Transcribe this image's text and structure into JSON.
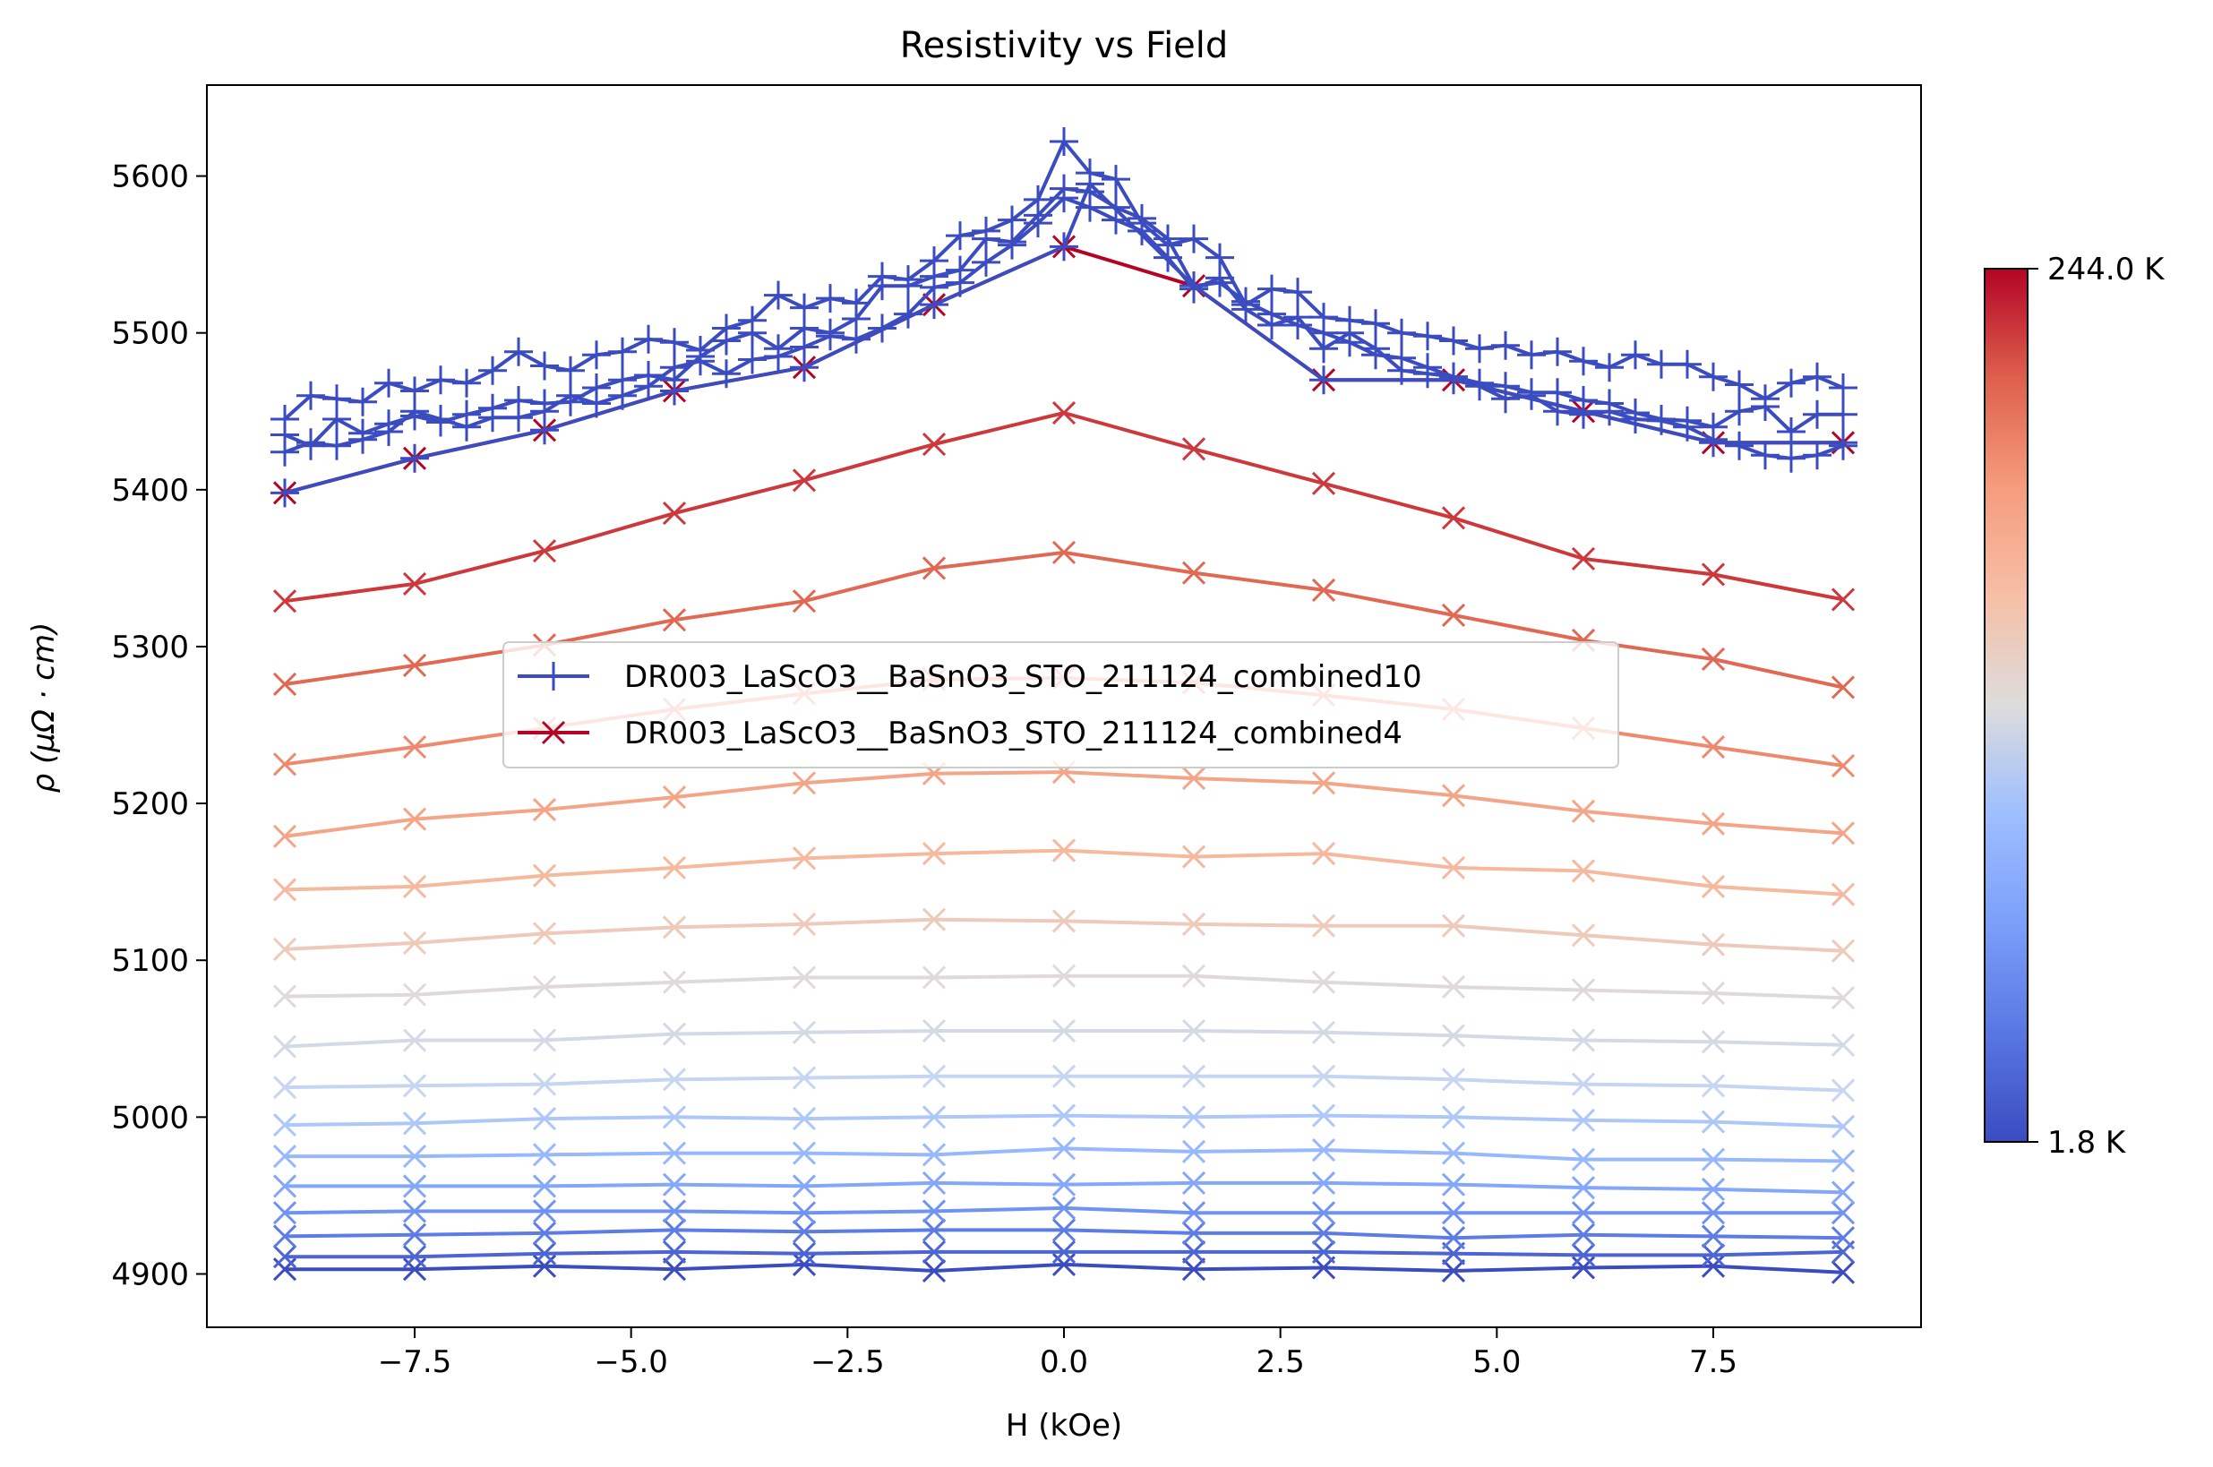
{
  "chart_data": {
    "type": "line",
    "title": "Resistivity vs Field",
    "xlabel": "H (kOe)",
    "ylabel": "ρ (μΩ · cm)",
    "xlim": [
      -9.9,
      9.9
    ],
    "ylim": [
      4866,
      5658
    ],
    "xticks": [
      "−7.5",
      "−5.0",
      "−2.5",
      "0.0",
      "2.5",
      "5.0",
      "7.5"
    ],
    "xtick_values": [
      -7.5,
      -5.0,
      -2.5,
      0.0,
      2.5,
      5.0,
      7.5
    ],
    "yticks": [
      "4900",
      "5000",
      "5100",
      "5200",
      "5300",
      "5400",
      "5500",
      "5600"
    ],
    "ytick_values": [
      4900,
      5000,
      5100,
      5200,
      5300,
      5400,
      5500,
      5600
    ],
    "grid": false,
    "legend_position": "center",
    "legend": [
      {
        "name": "DR003_LaScO3__BaSnO3_STO_211124_combined10",
        "marker": "+",
        "color": "#3b4cc0"
      },
      {
        "name": "DR003_LaScO3__BaSnO3_STO_211124_combined4",
        "marker": "x",
        "color": "#b40426"
      }
    ],
    "colorbar": {
      "colormap": "coolwarm",
      "min_label": "1.8 K",
      "max_label": "244.0 K",
      "min": 1.8,
      "max": 244.0
    },
    "dense_series": [
      {
        "marker": "+",
        "color": "#3b4cc0",
        "x": [
          -9,
          -8.7,
          -8.4,
          -8.1,
          -7.8,
          -7.5,
          -7.2,
          -6.9,
          -6.6,
          -6.3,
          -6,
          -5.7,
          -5.4,
          -5.1,
          -4.8,
          -4.5,
          -4.2,
          -3.9,
          -3.6,
          -3.3,
          -3,
          -2.7,
          -2.4,
          -2.1,
          -1.8,
          -1.5,
          -1.2,
          -0.9,
          -0.6,
          -0.3,
          0,
          0.3,
          0.6,
          0.9,
          1.2,
          1.5,
          1.8,
          2.1,
          2.4,
          2.7,
          3,
          3.3,
          3.6,
          3.9,
          4.2,
          4.5,
          4.8,
          5.1,
          5.4,
          5.7,
          6,
          6.3,
          6.6,
          6.9,
          7.2,
          7.5,
          7.8,
          8.1,
          8.4,
          8.7,
          9
        ],
        "y": [
          5445,
          5460,
          5458,
          5456,
          5468,
          5463,
          5470,
          5468,
          5476,
          5488,
          5479,
          5476,
          5486,
          5488,
          5496,
          5494,
          5489,
          5503,
          5508,
          5524,
          5516,
          5522,
          5519,
          5536,
          5534,
          5546,
          5562,
          5565,
          5572,
          5585,
          5622,
          5602,
          5598,
          5570,
          5556,
          5560,
          5548,
          5518,
          5528,
          5526,
          5510,
          5508,
          5506,
          5500,
          5498,
          5495,
          5490,
          5492,
          5486,
          5488,
          5482,
          5478,
          5486,
          5480,
          5480,
          5472,
          5467,
          5458,
          5468,
          5472,
          5465
        ]
      },
      {
        "marker": "+",
        "color": "#3b4cc0",
        "x": [
          -9,
          -8.7,
          -8.4,
          -8.1,
          -7.8,
          -7.5,
          -7.2,
          -6.9,
          -6.6,
          -6.3,
          -6,
          -5.7,
          -5.4,
          -5.1,
          -4.8,
          -4.5,
          -4.2,
          -3.9,
          -3.6,
          -3.3,
          -3,
          -2.7,
          -2.4,
          -2.1,
          -1.8,
          -1.5,
          -1.2,
          -0.9,
          -0.6,
          -0.3,
          0,
          0.3,
          0.6,
          0.9,
          1.2,
          1.5,
          1.8,
          2.1,
          2.4,
          2.7,
          3,
          3.3,
          3.6,
          3.9,
          4.2,
          4.5,
          4.8,
          5.1,
          5.4,
          5.7,
          6,
          6.3,
          6.6,
          6.9,
          7.2,
          7.5,
          7.8,
          8.1,
          8.4,
          8.7,
          9
        ],
        "y": [
          5435,
          5428,
          5445,
          5436,
          5442,
          5447,
          5443,
          5448,
          5452,
          5457,
          5455,
          5456,
          5465,
          5470,
          5473,
          5470,
          5485,
          5495,
          5500,
          5490,
          5503,
          5500,
          5509,
          5530,
          5530,
          5536,
          5540,
          5560,
          5558,
          5575,
          5592,
          5590,
          5580,
          5573,
          5560,
          5530,
          5532,
          5520,
          5512,
          5505,
          5500,
          5494,
          5486,
          5484,
          5478,
          5472,
          5468,
          5466,
          5462,
          5462,
          5457,
          5455,
          5449,
          5445,
          5444,
          5440,
          5450,
          5453,
          5437,
          5448,
          5448
        ]
      },
      {
        "marker": "+",
        "color": "#3b4cc0",
        "x": [
          -9,
          -8.7,
          -8.4,
          -8.1,
          -7.8,
          -7.5,
          -7.2,
          -6.9,
          -6.6,
          -6.3,
          -6,
          -5.7,
          -5.4,
          -5.1,
          -4.8,
          -4.5,
          -4.2,
          -3.9,
          -3.6,
          -3.3,
          -3,
          -2.7,
          -2.4,
          -2.1,
          -1.8,
          -1.5,
          -1.2,
          -0.9,
          -0.6,
          -0.3,
          0,
          0.3,
          0.6,
          0.9,
          1.2,
          1.5,
          1.8,
          2.1,
          2.4,
          2.7,
          3,
          3.3,
          3.6,
          3.9,
          4.2,
          4.5,
          4.8,
          5.1,
          5.4,
          5.7,
          6,
          6.3,
          6.6,
          6.9,
          7.2,
          7.5,
          7.8,
          8.1,
          8.4,
          8.7,
          9
        ],
        "y": [
          5424,
          5430,
          5428,
          5432,
          5437,
          5450,
          5445,
          5440,
          5446,
          5446,
          5450,
          5460,
          5455,
          5460,
          5466,
          5478,
          5482,
          5474,
          5483,
          5485,
          5491,
          5498,
          5496,
          5503,
          5512,
          5529,
          5532,
          5545,
          5556,
          5570,
          5586,
          5580,
          5572,
          5565,
          5548,
          5528,
          5535,
          5515,
          5505,
          5510,
          5490,
          5500,
          5490,
          5476,
          5474,
          5472,
          5466,
          5458,
          5460,
          5450,
          5448,
          5450,
          5445,
          5444,
          5440,
          5432,
          5428,
          5422,
          5420,
          5422,
          5428
        ]
      },
      {
        "marker": "+",
        "color": "#3b4cc0",
        "x": [
          -9,
          -7.5,
          -6,
          -4.5,
          -3,
          -1.5,
          0,
          0.3,
          1.5,
          3,
          4.5,
          6,
          7.5,
          9
        ],
        "y": [
          5398,
          5420,
          5438,
          5463,
          5478,
          5518,
          5555,
          5595,
          5530,
          5470,
          5470,
          5450,
          5430,
          5430
        ]
      }
    ],
    "series": [
      {
        "marker": "x",
        "x": [
          -9,
          -7.5,
          -6,
          -4.5,
          -3,
          -1.5,
          0,
          1.5,
          3,
          4.5,
          6,
          7.5,
          9
        ],
        "y": [
          5398,
          5420,
          5438,
          5463,
          5478,
          5518,
          5555,
          5530,
          5470,
          5470,
          5450,
          5430,
          5430
        ]
      },
      {
        "marker": "x",
        "x": [
          -9,
          -7.5,
          -6,
          -4.5,
          -3,
          -1.5,
          0,
          1.5,
          3,
          4.5,
          6,
          7.5,
          9
        ],
        "y": [
          5329,
          5340,
          5361,
          5385,
          5406,
          5429,
          5449,
          5426,
          5404,
          5382,
          5356,
          5346,
          5330
        ]
      },
      {
        "marker": "x",
        "x": [
          -9,
          -7.5,
          -6,
          -4.5,
          -3,
          -1.5,
          0,
          1.5,
          3,
          4.5,
          6,
          7.5,
          9
        ],
        "y": [
          5276,
          5288,
          5301,
          5317,
          5329,
          5350,
          5360,
          5347,
          5336,
          5320,
          5304,
          5292,
          5274
        ]
      },
      {
        "marker": "x",
        "x": [
          -9,
          -7.5,
          -6,
          -4.5,
          -3,
          -1.5,
          0,
          1.5,
          3,
          4.5,
          6,
          7.5,
          9
        ],
        "y": [
          5225,
          5236,
          5248,
          5260,
          5270,
          5279,
          5280,
          5277,
          5269,
          5260,
          5248,
          5236,
          5224
        ]
      },
      {
        "marker": "x",
        "x": [
          -9,
          -7.5,
          -6,
          -4.5,
          -3,
          -1.5,
          0,
          1.5,
          3,
          4.5,
          6,
          7.5,
          9
        ],
        "y": [
          5179,
          5190,
          5196,
          5204,
          5213,
          5219,
          5220,
          5216,
          5213,
          5205,
          5195,
          5187,
          5181
        ]
      },
      {
        "marker": "x",
        "x": [
          -9,
          -7.5,
          -6,
          -4.5,
          -3,
          -1.5,
          0,
          1.5,
          3,
          4.5,
          6,
          7.5,
          9
        ],
        "y": [
          5145,
          5147,
          5154,
          5159,
          5165,
          5168,
          5170,
          5166,
          5168,
          5159,
          5157,
          5147,
          5142
        ]
      },
      {
        "marker": "x",
        "x": [
          -9,
          -7.5,
          -6,
          -4.5,
          -3,
          -1.5,
          0,
          1.5,
          3,
          4.5,
          6,
          7.5,
          9
        ],
        "y": [
          5107,
          5111,
          5117,
          5121,
          5123,
          5126,
          5125,
          5123,
          5122,
          5122,
          5116,
          5110,
          5106
        ]
      },
      {
        "marker": "x",
        "x": [
          -9,
          -7.5,
          -6,
          -4.5,
          -3,
          -1.5,
          0,
          1.5,
          3,
          4.5,
          6,
          7.5,
          9
        ],
        "y": [
          5077,
          5078,
          5083,
          5086,
          5089,
          5089,
          5090,
          5090,
          5086,
          5083,
          5081,
          5079,
          5076
        ]
      },
      {
        "marker": "x",
        "x": [
          -9,
          -7.5,
          -6,
          -4.5,
          -3,
          -1.5,
          0,
          1.5,
          3,
          4.5,
          6,
          7.5,
          9
        ],
        "y": [
          5045,
          5049,
          5049,
          5053,
          5054,
          5055,
          5055,
          5055,
          5054,
          5052,
          5049,
          5048,
          5046
        ]
      },
      {
        "marker": "x",
        "x": [
          -9,
          -7.5,
          -6,
          -4.5,
          -3,
          -1.5,
          0,
          1.5,
          3,
          4.5,
          6,
          7.5,
          9
        ],
        "y": [
          5019,
          5020,
          5021,
          5024,
          5025,
          5026,
          5026,
          5026,
          5026,
          5024,
          5021,
          5020,
          5017
        ]
      },
      {
        "marker": "x",
        "x": [
          -9,
          -7.5,
          -6,
          -4.5,
          -3,
          -1.5,
          0,
          1.5,
          3,
          4.5,
          6,
          7.5,
          9
        ],
        "y": [
          4995,
          4996,
          4999,
          5000,
          4999,
          5000,
          5001,
          5000,
          5001,
          5000,
          4998,
          4997,
          4994
        ]
      },
      {
        "marker": "x",
        "x": [
          -9,
          -7.5,
          -6,
          -4.5,
          -3,
          -1.5,
          0,
          1.5,
          3,
          4.5,
          6,
          7.5,
          9
        ],
        "y": [
          4975,
          4975,
          4976,
          4977,
          4977,
          4976,
          4980,
          4978,
          4979,
          4977,
          4973,
          4973,
          4972
        ]
      },
      {
        "marker": "x",
        "x": [
          -9,
          -7.5,
          -6,
          -4.5,
          -3,
          -1.5,
          0,
          1.5,
          3,
          4.5,
          6,
          7.5,
          9
        ],
        "y": [
          4956,
          4956,
          4956,
          4957,
          4956,
          4958,
          4957,
          4958,
          4958,
          4957,
          4955,
          4954,
          4952
        ]
      },
      {
        "marker": "x",
        "x": [
          -9,
          -7.5,
          -6,
          -4.5,
          -3,
          -1.5,
          0,
          1.5,
          3,
          4.5,
          6,
          7.5,
          9
        ],
        "y": [
          4939,
          4940,
          4940,
          4940,
          4939,
          4940,
          4942,
          4939,
          4939,
          4939,
          4939,
          4939,
          4939
        ]
      },
      {
        "marker": "x",
        "x": [
          -9,
          -7.5,
          -6,
          -4.5,
          -3,
          -1.5,
          0,
          1.5,
          3,
          4.5,
          6,
          7.5,
          9
        ],
        "y": [
          4924,
          4925,
          4926,
          4928,
          4927,
          4928,
          4928,
          4926,
          4926,
          4923,
          4925,
          4924,
          4923
        ]
      },
      {
        "marker": "x",
        "x": [
          -9,
          -7.5,
          -6,
          -4.5,
          -3,
          -1.5,
          0,
          1.5,
          3,
          4.5,
          6,
          7.5,
          9
        ],
        "y": [
          4911,
          4911,
          4913,
          4914,
          4913,
          4914,
          4914,
          4914,
          4914,
          4913,
          4912,
          4912,
          4914
        ]
      },
      {
        "marker": "x",
        "x": [
          -9,
          -7.5,
          -6,
          -4.5,
          -3,
          -1.5,
          0,
          1.5,
          3,
          4.5,
          6,
          7.5,
          9
        ],
        "y": [
          4903,
          4903,
          4905,
          4903,
          4906,
          4902,
          4906,
          4903,
          4904,
          4902,
          4904,
          4905,
          4901
        ]
      }
    ]
  }
}
